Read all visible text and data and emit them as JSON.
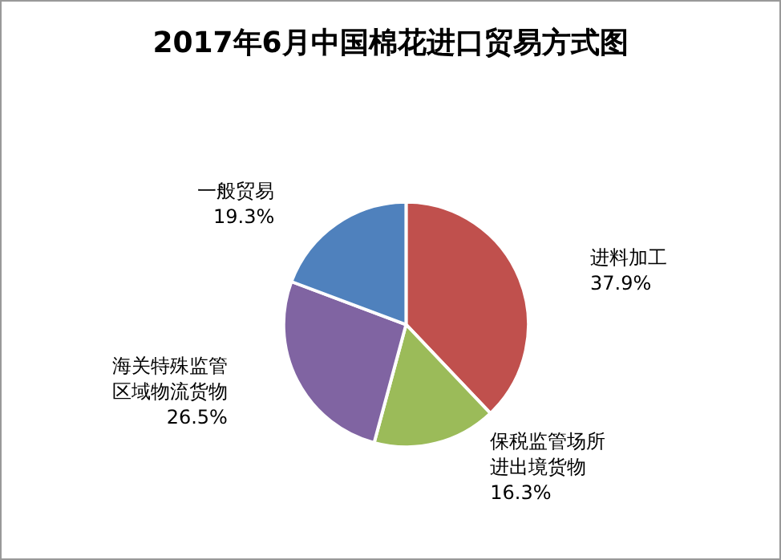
{
  "chart_data": {
    "type": "pie",
    "title": "2017年6月中国棉花进口贸易方式图",
    "categories": [
      "进料加工",
      "保税监管场所进出境货物",
      "海关特殊监管区域物流货物",
      "一般贸易"
    ],
    "values": [
      37.9,
      16.3,
      26.5,
      19.3
    ],
    "colors": [
      "#c0504d",
      "#9bbb59",
      "#8064a2",
      "#4f81bd"
    ],
    "value_labels": [
      "37.9%",
      "16.3%",
      "26.5%",
      "19.3%"
    ],
    "legend": false
  }
}
